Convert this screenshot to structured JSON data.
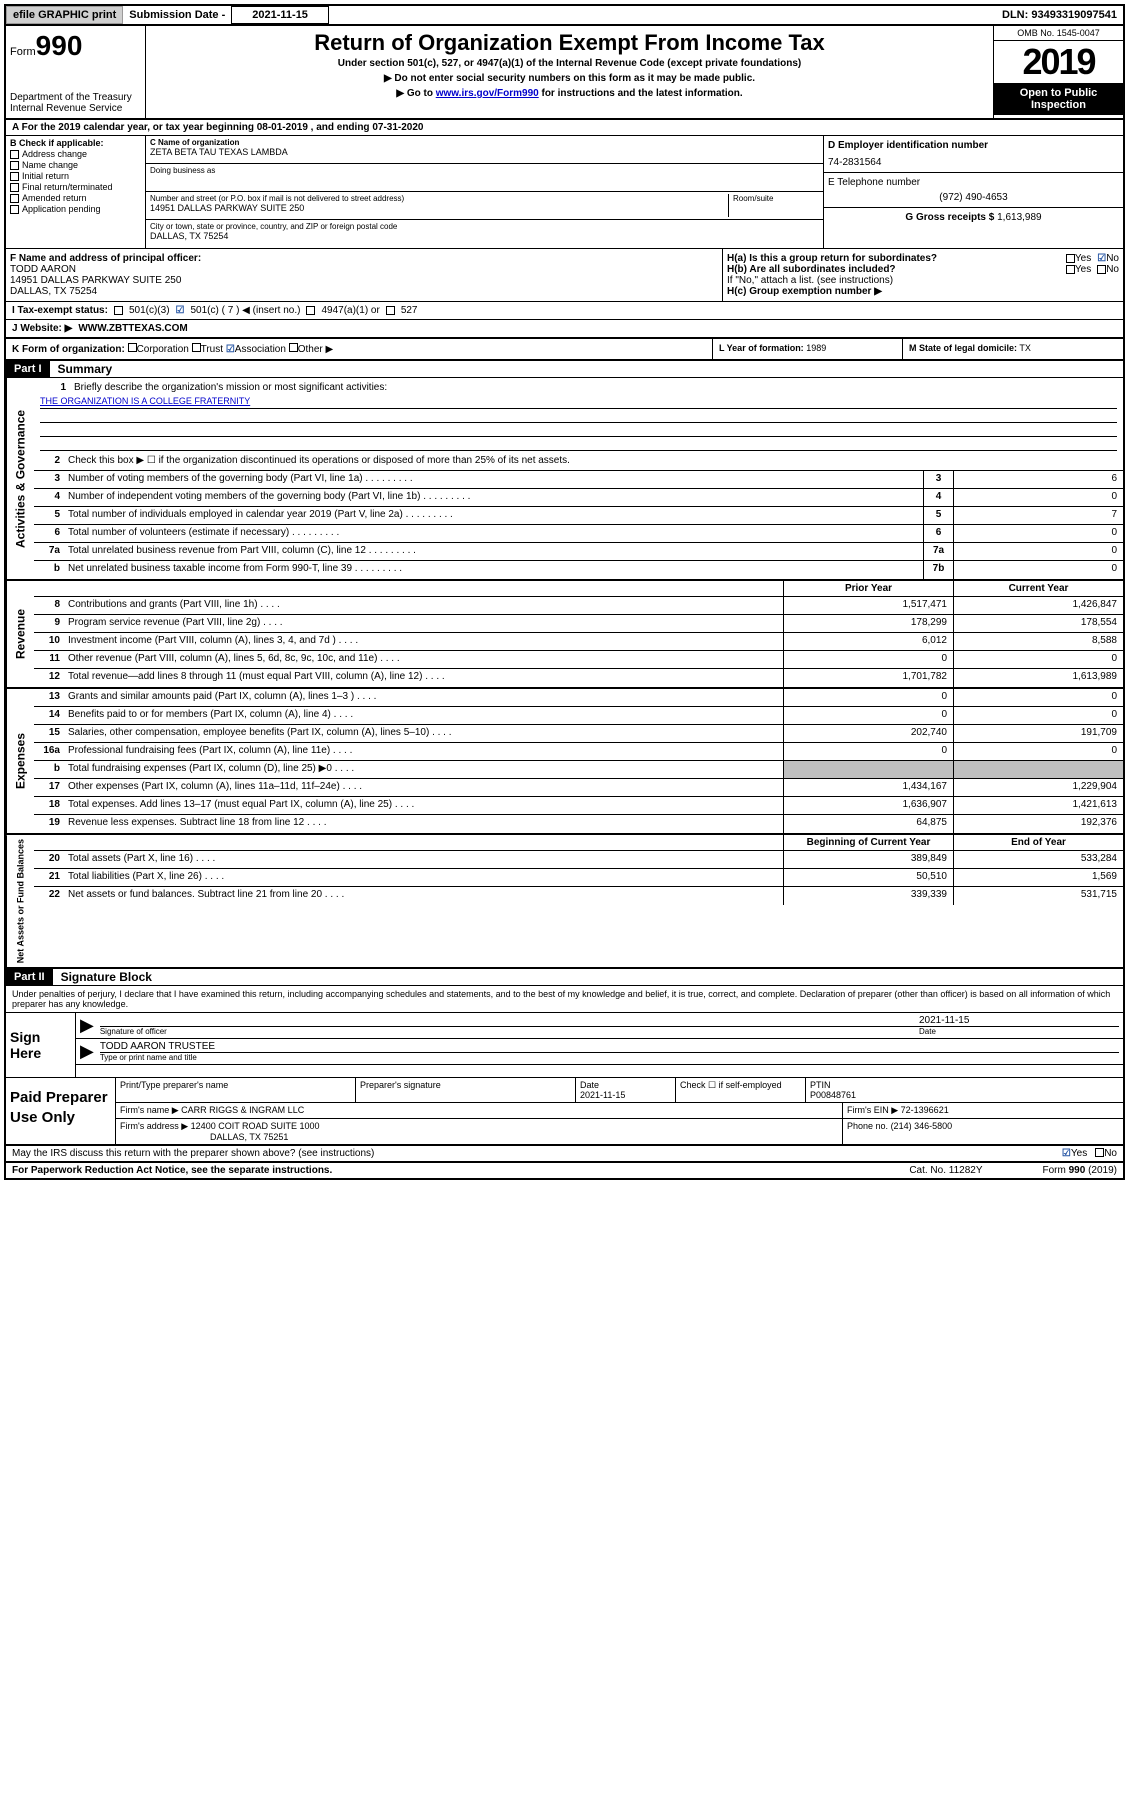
{
  "topbar": {
    "efile": "efile GRAPHIC print",
    "subLabel": "Submission Date -",
    "subDate": "2021-11-15",
    "dln": "DLN: 93493319097541"
  },
  "header": {
    "formWord": "Form",
    "formNum": "990",
    "dept": "Department of the Treasury\nInternal Revenue Service",
    "title": "Return of Organization Exempt From Income Tax",
    "sub1": "Under section 501(c), 527, or 4947(a)(1) of the Internal Revenue Code (except private foundations)",
    "sub2": "▶ Do not enter social security numbers on this form as it may be made public.",
    "sub3a": "▶ Go to ",
    "sub3link": "www.irs.gov/Form990",
    "sub3b": " for instructions and the latest information.",
    "omb": "OMB No. 1545-0047",
    "year": "2019",
    "inspect1": "Open to Public",
    "inspect2": "Inspection"
  },
  "periodA": "A For the 2019 calendar year, or tax year beginning 08-01-2019   , and ending 07-31-2020",
  "sectionB": {
    "label": "B Check if applicable:",
    "opts": [
      "Address change",
      "Name change",
      "Initial return",
      "Final return/terminated",
      "Amended return",
      "Application pending"
    ]
  },
  "sectionC": {
    "nameLabel": "C Name of organization",
    "name": "ZETA BETA TAU TEXAS LAMBDA",
    "dbaLabel": "Doing business as",
    "dba": "",
    "addrLabel": "Number and street (or P.O. box if mail is not delivered to street address)",
    "roomLabel": "Room/suite",
    "addr": "14951 DALLAS PARKWAY SUITE 250",
    "cityLabel": "City or town, state or province, country, and ZIP or foreign postal code",
    "city": "DALLAS, TX   75254"
  },
  "sectionD": {
    "label": "D Employer identification number",
    "val": "74-2831564"
  },
  "sectionE": {
    "label": "E Telephone number",
    "val": "(972) 490-4653"
  },
  "sectionG": {
    "label": "G Gross receipts $",
    "val": "1,613,989"
  },
  "sectionF": {
    "label": "F  Name and address of principal officer:",
    "name": "TODD AARON",
    "addr1": "14951 DALLAS PARKWAY SUITE 250",
    "addr2": "DALLAS, TX   75254"
  },
  "sectionH": {
    "ha": "H(a)  Is this a group return for subordinates?",
    "haYes": "Yes",
    "haNo": "No",
    "hb": "H(b)  Are all subordinates included?",
    "hbNote": "If \"No,\" attach a list. (see instructions)",
    "hc": "H(c)  Group exemption number ▶"
  },
  "sectionI": {
    "label": "I     Tax-exempt status:",
    "o1": "501(c)(3)",
    "o2": "501(c) ( 7 ) ◀ (insert no.)",
    "o3": "4947(a)(1) or",
    "o4": "527"
  },
  "sectionJ": {
    "label": "J    Website: ▶",
    "val": "WWW.ZBTTEXAS.COM"
  },
  "sectionK": {
    "label": "K Form of organization:",
    "o1": "Corporation",
    "o2": "Trust",
    "o3": "Association",
    "o4": "Other ▶"
  },
  "sectionL": {
    "label": "L Year of formation:",
    "val": "1989"
  },
  "sectionM": {
    "label": "M State of legal domicile:",
    "val": "TX"
  },
  "part1": {
    "hdr": "Part I",
    "title": "Summary",
    "side1": "Activities & Governance",
    "q1": "Briefly describe the organization's mission or most significant activities:",
    "mission": "THE ORGANIZATION IS A COLLEGE FRATERNITY",
    "q2": "Check this box ▶ ☐  if the organization discontinued its operations or disposed of more than 25% of its net assets.",
    "rows_gov": [
      {
        "n": "3",
        "d": "Number of voting members of the governing body (Part VI, line 1a)",
        "an": "3",
        "v": "6"
      },
      {
        "n": "4",
        "d": "Number of independent voting members of the governing body (Part VI, line 1b)",
        "an": "4",
        "v": "0"
      },
      {
        "n": "5",
        "d": "Total number of individuals employed in calendar year 2019 (Part V, line 2a)",
        "an": "5",
        "v": "7"
      },
      {
        "n": "6",
        "d": "Total number of volunteers (estimate if necessary)",
        "an": "6",
        "v": "0"
      },
      {
        "n": "7a",
        "d": "Total unrelated business revenue from Part VIII, column (C), line 12",
        "an": "7a",
        "v": "0"
      },
      {
        "n": "b",
        "d": "Net unrelated business taxable income from Form 990-T, line 39",
        "an": "7b",
        "v": "0"
      }
    ],
    "side2": "Revenue",
    "hdrPrior": "Prior Year",
    "hdrCurr": "Current Year",
    "rows_rev": [
      {
        "n": "8",
        "d": "Contributions and grants (Part VIII, line 1h)",
        "p": "1,517,471",
        "c": "1,426,847"
      },
      {
        "n": "9",
        "d": "Program service revenue (Part VIII, line 2g)",
        "p": "178,299",
        "c": "178,554"
      },
      {
        "n": "10",
        "d": "Investment income (Part VIII, column (A), lines 3, 4, and 7d )",
        "p": "6,012",
        "c": "8,588"
      },
      {
        "n": "11",
        "d": "Other revenue (Part VIII, column (A), lines 5, 6d, 8c, 9c, 10c, and 11e)",
        "p": "0",
        "c": "0"
      },
      {
        "n": "12",
        "d": "Total revenue—add lines 8 through 11 (must equal Part VIII, column (A), line 12)",
        "p": "1,701,782",
        "c": "1,613,989"
      }
    ],
    "side3": "Expenses",
    "rows_exp": [
      {
        "n": "13",
        "d": "Grants and similar amounts paid (Part IX, column (A), lines 1–3 )",
        "p": "0",
        "c": "0"
      },
      {
        "n": "14",
        "d": "Benefits paid to or for members (Part IX, column (A), line 4)",
        "p": "0",
        "c": "0"
      },
      {
        "n": "15",
        "d": "Salaries, other compensation, employee benefits (Part IX, column (A), lines 5–10)",
        "p": "202,740",
        "c": "191,709"
      },
      {
        "n": "16a",
        "d": "Professional fundraising fees (Part IX, column (A), line 11e)",
        "p": "0",
        "c": "0"
      },
      {
        "n": "b",
        "d": "Total fundraising expenses (Part IX, column (D), line 25) ▶0",
        "p": "",
        "c": "",
        "shaded": true
      },
      {
        "n": "17",
        "d": "Other expenses (Part IX, column (A), lines 11a–11d, 11f–24e)",
        "p": "1,434,167",
        "c": "1,229,904"
      },
      {
        "n": "18",
        "d": "Total expenses. Add lines 13–17 (must equal Part IX, column (A), line 25)",
        "p": "1,636,907",
        "c": "1,421,613"
      },
      {
        "n": "19",
        "d": "Revenue less expenses. Subtract line 18 from line 12",
        "p": "64,875",
        "c": "192,376"
      }
    ],
    "side4": "Net Assets or Fund Balances",
    "hdrBeg": "Beginning of Current Year",
    "hdrEnd": "End of Year",
    "rows_net": [
      {
        "n": "20",
        "d": "Total assets (Part X, line 16)",
        "p": "389,849",
        "c": "533,284"
      },
      {
        "n": "21",
        "d": "Total liabilities (Part X, line 26)",
        "p": "50,510",
        "c": "1,569"
      },
      {
        "n": "22",
        "d": "Net assets or fund balances. Subtract line 21 from line 20",
        "p": "339,339",
        "c": "531,715"
      }
    ]
  },
  "part2": {
    "hdr": "Part II",
    "title": "Signature Block",
    "decl": "Under penalties of perjury, I declare that I have examined this return, including accompanying schedules and statements, and to the best of my knowledge and belief, it is true, correct, and complete. Declaration of preparer (other than officer) is based on all information of which preparer has any knowledge.",
    "signHere": "Sign Here",
    "sigOfficer": "Signature of officer",
    "sigDate": "2021-11-15",
    "dateLabel": "Date",
    "typeName": "TODD AARON  TRUSTEE",
    "typeLabel": "Type or print name and title",
    "paidPrep": "Paid Preparer Use Only",
    "prepNameLabel": "Print/Type preparer's name",
    "prepSigLabel": "Preparer's signature",
    "prepDateLabel": "Date",
    "prepDate": "2021-11-15",
    "checkLabel": "Check ☐ if self-employed",
    "ptinLabel": "PTIN",
    "ptin": "P00848761",
    "firmNameLabel": "Firm's name     ▶",
    "firmName": "CARR RIGGS & INGRAM LLC",
    "firmEINLabel": "Firm's EIN ▶",
    "firmEIN": "72-1396621",
    "firmAddrLabel": "Firm's address ▶",
    "firmAddr1": "12400 COIT ROAD SUITE 1000",
    "firmAddr2": "DALLAS, TX   75251",
    "phoneLabel": "Phone no.",
    "phone": "(214) 346-5800",
    "discuss": "May the IRS discuss this return with the preparer shown above? (see instructions)",
    "discussYes": "Yes",
    "discussNo": "No"
  },
  "footer": {
    "left": "For Paperwork Reduction Act Notice, see the separate instructions.",
    "mid": "Cat. No. 11282Y",
    "right": "Form 990 (2019)"
  }
}
